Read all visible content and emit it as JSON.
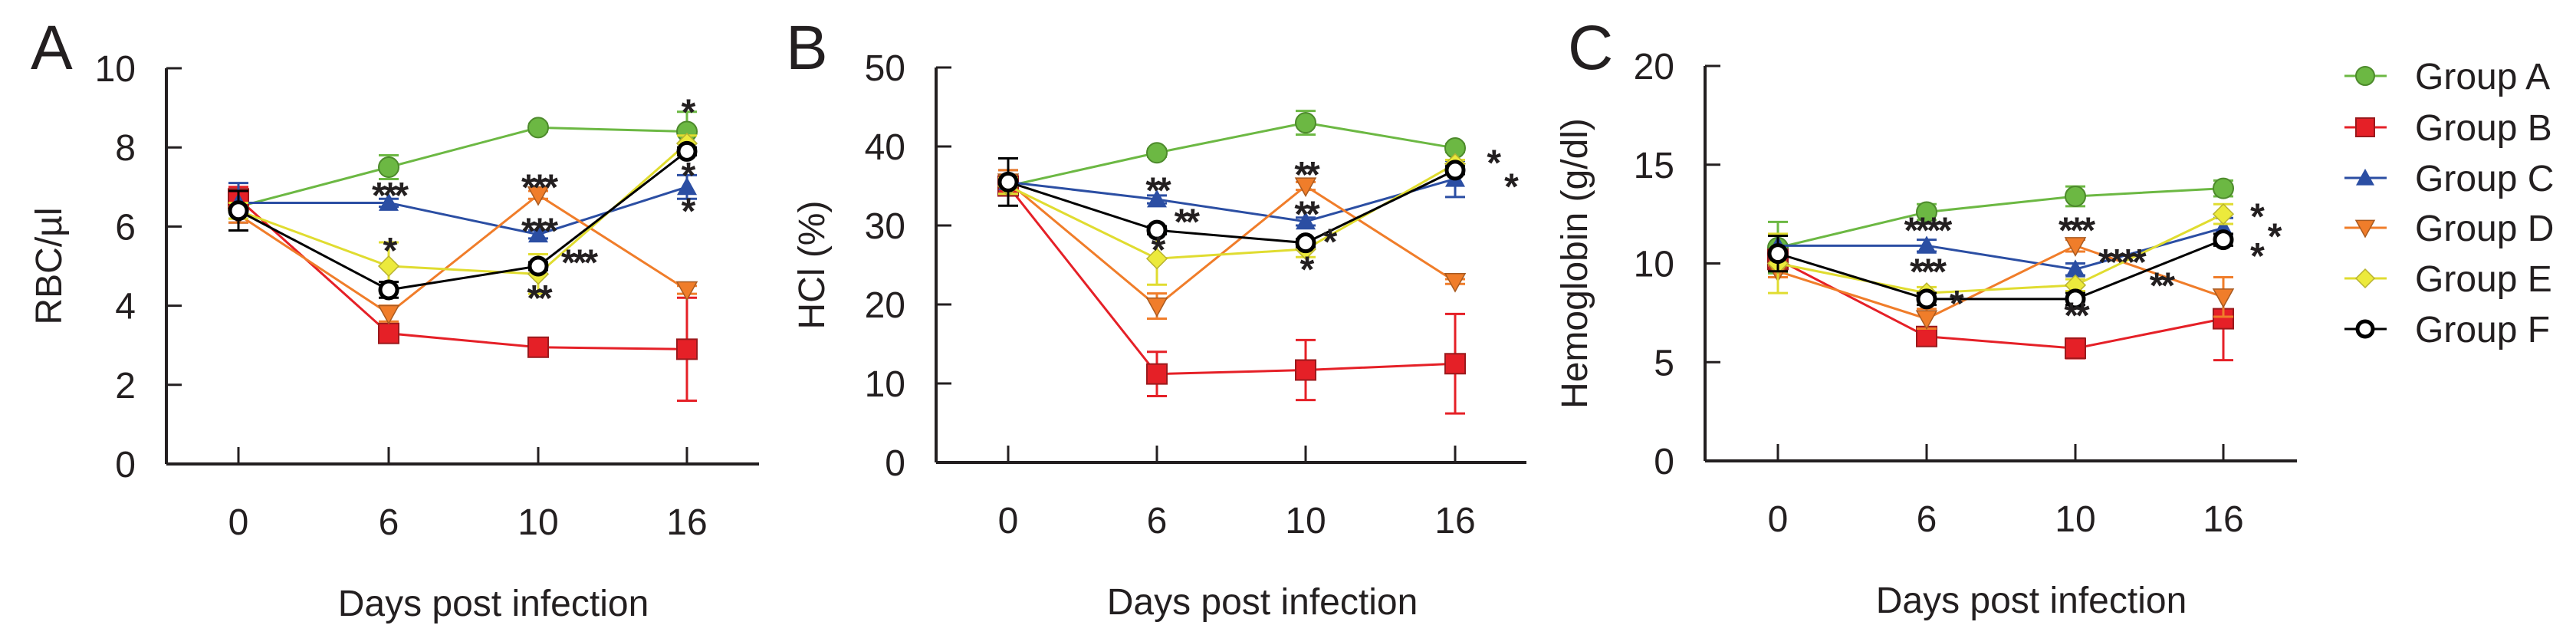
{
  "chart_data": [
    {
      "type": "line",
      "panel_label": "A",
      "ylabel": "RBC/µl",
      "xlabel": "Days post infection",
      "categories": [
        "0",
        "6",
        "10",
        "16"
      ],
      "ylim": [
        0,
        10
      ],
      "yticks": [
        "0",
        "2",
        "4",
        "6",
        "8",
        "10"
      ],
      "series": [
        {
          "name": "Group A",
          "values": [
            6.5,
            7.5,
            8.5,
            8.4
          ],
          "err": [
            0.3,
            0.3,
            0.1,
            0.5
          ]
        },
        {
          "name": "Group B",
          "values": [
            6.7,
            3.3,
            2.95,
            2.9
          ],
          "err": [
            0.3,
            0.2,
            0.1,
            1.3
          ]
        },
        {
          "name": "Group C",
          "values": [
            6.6,
            6.6,
            5.8,
            7.0
          ],
          "err": [
            0.5,
            0.1,
            0.1,
            0.3
          ]
        },
        {
          "name": "Group D",
          "values": [
            6.3,
            3.8,
            6.8,
            4.4
          ],
          "err": [
            0.2,
            0.2,
            0.1,
            0.1
          ]
        },
        {
          "name": "Group E",
          "values": [
            6.4,
            5.0,
            4.8,
            8.1
          ],
          "err": [
            0.2,
            0.6,
            0.5,
            0.2
          ]
        },
        {
          "name": "Group F",
          "values": [
            6.4,
            4.4,
            5.0,
            7.9
          ],
          "err": [
            0.5,
            0.2,
            0.1,
            0.1
          ]
        }
      ],
      "annotations": [
        {
          "text": "***",
          "x": 1,
          "y": 6.9
        },
        {
          "text": "*",
          "x": 1,
          "y": 5.5
        },
        {
          "text": "***",
          "x": 2,
          "y": 7.1
        },
        {
          "text": "***",
          "x": 2,
          "y": 6.0
        },
        {
          "text": "***",
          "x": 2,
          "y": 5.2
        },
        {
          "text": "**",
          "x": 2,
          "y": 4.3
        },
        {
          "text": "*",
          "x": 3,
          "y": 9.0
        },
        {
          "text": "*",
          "x": 3,
          "y": 7.4
        },
        {
          "text": "*",
          "x": 3,
          "y": 6.5
        }
      ]
    },
    {
      "type": "line",
      "panel_label": "B",
      "ylabel": "HCl (%)",
      "xlabel": "Days post infection",
      "categories": [
        "0",
        "6",
        "10",
        "16"
      ],
      "ylim": [
        0,
        50
      ],
      "yticks": [
        "0",
        "10",
        "20",
        "30",
        "40",
        "50"
      ],
      "series": [
        {
          "name": "Group A",
          "values": [
            35,
            39.2,
            43,
            39.8
          ],
          "err": [
            1,
            0.5,
            1.5,
            0.5
          ]
        },
        {
          "name": "Group B",
          "values": [
            35,
            11.2,
            11.7,
            12.5
          ],
          "err": [
            1,
            2.8,
            3.8,
            6.3
          ]
        },
        {
          "name": "Group C",
          "values": [
            35.5,
            33.3,
            30.5,
            35.9
          ],
          "err": [
            1.5,
            0.5,
            0.5,
            2.3
          ]
        },
        {
          "name": "Group D",
          "values": [
            35.5,
            19.8,
            35,
            22.9
          ],
          "err": [
            1.5,
            1.6,
            0.5,
            0.3
          ]
        },
        {
          "name": "Group E",
          "values": [
            35,
            25.8,
            27,
            37.8
          ],
          "err": [
            1,
            3.3,
            1,
            0.5
          ]
        },
        {
          "name": "Group F",
          "values": [
            35.5,
            29.4,
            27.8,
            37
          ],
          "err": [
            3,
            0.5,
            0.5,
            0.5
          ]
        }
      ],
      "annotations": [
        {
          "text": "**",
          "x": 1,
          "y": 35
        },
        {
          "text": "**",
          "x": 1,
          "y": 31
        },
        {
          "text": "*",
          "x": 1,
          "y": 27.5
        },
        {
          "text": "**",
          "x": 2,
          "y": 37
        },
        {
          "text": "**",
          "x": 2,
          "y": 32
        },
        {
          "text": "*",
          "x": 2,
          "y": 28.5
        },
        {
          "text": "*",
          "x": 2,
          "y": 25
        },
        {
          "text": "*",
          "x": 3.25,
          "y": 38.5
        },
        {
          "text": "*",
          "x": 3.25,
          "y": 35.5
        }
      ]
    },
    {
      "type": "line",
      "panel_label": "C",
      "ylabel": "Hemoglobin (g/dl)",
      "xlabel": "Days post infection",
      "categories": [
        "0",
        "6",
        "10",
        "16"
      ],
      "ylim": [
        0,
        20
      ],
      "yticks": [
        "0",
        "5",
        "10",
        "15",
        "20"
      ],
      "series": [
        {
          "name": "Group A",
          "values": [
            10.8,
            12.6,
            13.4,
            13.8
          ],
          "err": [
            1.3,
            0.4,
            0.5,
            0.4
          ]
        },
        {
          "name": "Group B",
          "values": [
            10.2,
            6.3,
            5.7,
            7.2
          ],
          "err": [
            0.5,
            0.2,
            0.5,
            2.1
          ]
        },
        {
          "name": "Group C",
          "values": [
            10.9,
            10.9,
            9.7,
            11.8
          ],
          "err": [
            0.5,
            0.3,
            0.3,
            0.5
          ]
        },
        {
          "name": "Group D",
          "values": [
            9.6,
            7.2,
            10.9,
            8.3
          ],
          "err": [
            0.3,
            0.5,
            0.3,
            1
          ]
        },
        {
          "name": "Group E",
          "values": [
            10.0,
            8.5,
            8.9,
            12.5
          ],
          "err": [
            1.5,
            0.3,
            0.3,
            0.5
          ]
        },
        {
          "name": "Group F",
          "values": [
            10.5,
            8.2,
            8.2,
            11.2
          ],
          "err": [
            0.9,
            0.3,
            0.3,
            0.3
          ]
        }
      ],
      "annotations": [
        {
          "text": "****",
          "x": 1,
          "y": 11.9
        },
        {
          "text": "***",
          "x": 1,
          "y": 9.8
        },
        {
          "text": "*",
          "x": 0.85,
          "y": 8.2
        },
        {
          "text": "***",
          "x": 2,
          "y": 11.9
        },
        {
          "text": "****",
          "x": 2,
          "y": 10.3
        },
        {
          "text": "**",
          "x": 2.15,
          "y": 9.1
        },
        {
          "text": "**",
          "x": 2,
          "y": 7.6
        },
        {
          "text": "*",
          "x": 3.22,
          "y": 12.6
        },
        {
          "text": "*",
          "x": 3.22,
          "y": 11.6
        },
        {
          "text": "*",
          "x": 3.22,
          "y": 10.6
        }
      ]
    }
  ],
  "legend": {
    "placement": "right",
    "items": [
      {
        "name": "Group A",
        "color": "#6cb843",
        "marker": "circle"
      },
      {
        "name": "Group B",
        "color": "#e52027",
        "marker": "square"
      },
      {
        "name": "Group C",
        "color": "#2b4ea3",
        "marker": "triangle-up"
      },
      {
        "name": "Group D",
        "color": "#f07d2a",
        "marker": "triangle-down"
      },
      {
        "name": "Group E",
        "color": "#ecea3c",
        "marker": "diamond"
      },
      {
        "name": "Group F",
        "color": "#000000",
        "marker": "open-circle"
      }
    ]
  }
}
